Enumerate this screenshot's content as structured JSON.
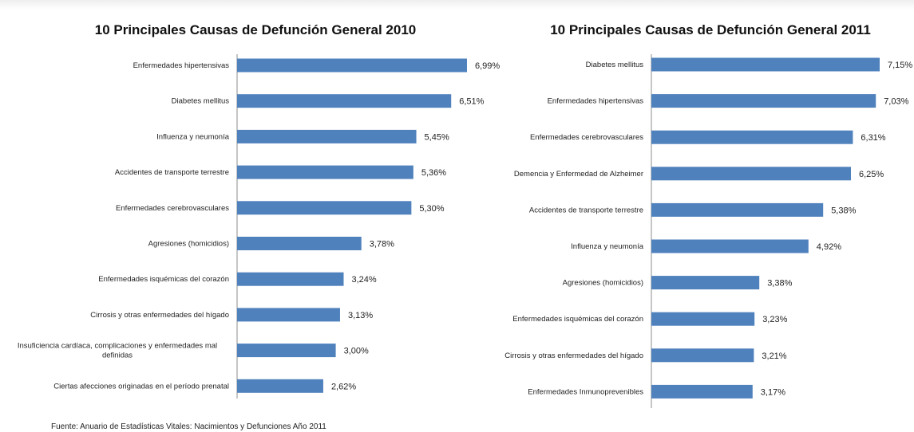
{
  "chart_data": [
    {
      "type": "bar",
      "orientation": "horizontal",
      "title": "10 Principales Causas de Defunción General 2010",
      "categories": [
        "Enfermedades hipertensivas",
        "Diabetes mellitus",
        "Influenza y neumonía",
        "Accidentes de transporte terrestre",
        "Enfermedades cerebrovasculares",
        "Agresiones (homicidios)",
        "Enfermedades isquémicas del corazón",
        "Cirrosis y otras enfermedades del hígado",
        "Insuficiencia cardíaca, complicaciones y enfermedades mal definidas",
        "Ciertas afecciones originadas en el período prenatal"
      ],
      "category_lines": [
        [
          "Enfermedades hipertensivas"
        ],
        [
          "Diabetes mellitus"
        ],
        [
          "Influenza y neumonía"
        ],
        [
          "Accidentes de transporte terrestre"
        ],
        [
          "Enfermedades cerebrovasculares"
        ],
        [
          "Agresiones (homicidios)"
        ],
        [
          "Enfermedades isquémicas del corazón"
        ],
        [
          "Cirrosis y otras enfermedades del hígado"
        ],
        [
          "Insuficiencia cardíaca, complicaciones y enfermedades mal",
          "definidas"
        ],
        [
          "Ciertas afecciones originadas en el período prenatal"
        ]
      ],
      "values": [
        6.99,
        6.51,
        5.45,
        5.36,
        5.3,
        3.78,
        3.24,
        3.13,
        3.0,
        2.62
      ],
      "value_labels": [
        "6,99%",
        "6,51%",
        "5,45%",
        "5,36%",
        "5,30%",
        "3,78%",
        "3,24%",
        "3,13%",
        "3,00%",
        "2,62%"
      ],
      "xlabel": "",
      "ylabel": "",
      "grid": false,
      "color": "#4f81bd"
    },
    {
      "type": "bar",
      "orientation": "horizontal",
      "title": "10 Principales Causas de Defunción General 2011",
      "categories": [
        "Diabetes mellitus",
        "Enfermedades hipertensivas",
        "Enfermedades cerebrovasculares",
        "Demencia y Enfermedad de Alzheimer",
        "Accidentes de transporte terrestre",
        "Influenza y neumonía",
        "Agresiones (homicidios)",
        "Enfermedades isquémicas del corazón",
        "Cirrosis y otras enfermedades del hígado",
        "Enfermedades Inmunoprevenibles"
      ],
      "category_lines": [
        [
          "Diabetes mellitus"
        ],
        [
          "Enfermedades hipertensivas"
        ],
        [
          "Enfermedades cerebrovasculares"
        ],
        [
          "Demencia y Enfermedad de Alzheimer"
        ],
        [
          "Accidentes de transporte terrestre"
        ],
        [
          "Influenza y neumonía"
        ],
        [
          "Agresiones (homicidios)"
        ],
        [
          "Enfermedades isquémicas del corazón"
        ],
        [
          "Cirrosis y otras enfermedades del hígado"
        ],
        [
          "Enfermedades Inmunoprevenibles"
        ]
      ],
      "values": [
        7.15,
        7.03,
        6.31,
        6.25,
        5.38,
        4.92,
        3.38,
        3.23,
        3.21,
        3.17
      ],
      "value_labels": [
        "7,15%",
        "7,03%",
        "6,31%",
        "6,25%",
        "5,38%",
        "4,92%",
        "3,38%",
        "3,23%",
        "3,21%",
        "3,17%"
      ],
      "xlabel": "",
      "ylabel": "",
      "grid": false,
      "color": "#4f81bd"
    }
  ],
  "source_text": "Fuente: Anuario de Estadísticas Vitales: Nacimientos y Defunciones Año 2011"
}
